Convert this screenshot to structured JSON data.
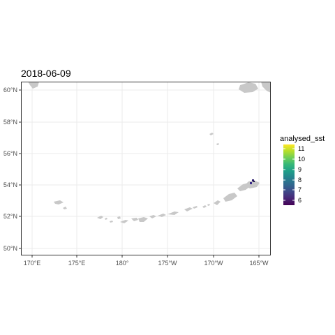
{
  "title": "2018-06-09",
  "legend": {
    "title": "analysed_sst",
    "labels": [
      "11",
      "10",
      "9",
      "8",
      "7",
      "6"
    ],
    "colors": [
      "#fde725",
      "#b5de2b",
      "#6ece58",
      "#35b779",
      "#1f9e89",
      "#26828e",
      "#31688e",
      "#3e4989",
      "#482878",
      "#440154"
    ]
  },
  "map": {
    "x_ticks": [
      "170°E",
      "175°E",
      "180°",
      "175°W",
      "170°W",
      "165°W"
    ],
    "y_ticks": [
      "60°N",
      "58°N",
      "56°N",
      "54°N",
      "52°N",
      "50°N"
    ],
    "panel_bg": "#ffffff",
    "grid_color": "#ebebeb",
    "land_color": "#c8c8c8",
    "border_color": "#333333"
  }
}
